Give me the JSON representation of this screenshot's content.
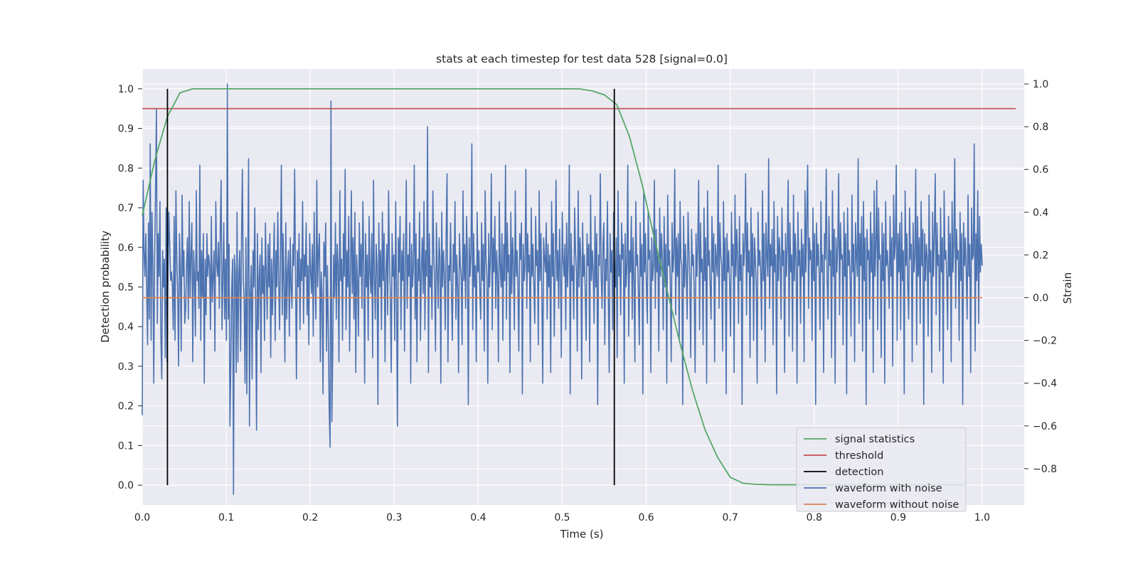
{
  "chart_data": {
    "type": "line",
    "title": "stats at each timestep for test data 528 [signal=0.0]",
    "xlabel": "Time (s)",
    "ylabel_left": "Detection probability",
    "ylabel_right": "Strain",
    "xlim": [
      0.0,
      1.05
    ],
    "ylim_left": [
      -0.05,
      1.05
    ],
    "ylim_right": [
      -0.97,
      1.07
    ],
    "x_ticks": [
      0.0,
      0.1,
      0.2,
      0.3,
      0.4,
      0.5,
      0.6,
      0.7,
      0.8,
      0.9,
      1.0
    ],
    "x_tick_labels": [
      "0.0",
      "0.1",
      "0.2",
      "0.3",
      "0.4",
      "0.5",
      "0.6",
      "0.7",
      "0.8",
      "0.9",
      "1.0"
    ],
    "y_left_ticks": [
      0.0,
      0.1,
      0.2,
      0.3,
      0.4,
      0.5,
      0.6,
      0.7,
      0.8,
      0.9,
      1.0
    ],
    "y_left_tick_labels": [
      "0.0",
      "0.1",
      "0.2",
      "0.3",
      "0.4",
      "0.5",
      "0.6",
      "0.7",
      "0.8",
      "0.9",
      "1.0"
    ],
    "y_right_ticks": [
      -0.8,
      -0.6,
      -0.4,
      -0.2,
      0.0,
      0.2,
      0.4,
      0.6,
      0.8,
      1.0
    ],
    "y_right_tick_labels": [
      "−0.8",
      "−0.6",
      "−0.4",
      "−0.2",
      "0.0",
      "0.2",
      "0.4",
      "0.6",
      "0.8",
      "1.0"
    ],
    "grid": true,
    "legend_position": "lower-right",
    "series": [
      {
        "name": "signal statistics",
        "axis": "left",
        "color": "#55a868",
        "x": [
          0.0,
          0.015,
          0.03,
          0.045,
          0.06,
          0.075,
          0.1,
          0.2,
          0.3,
          0.4,
          0.5,
          0.52,
          0.535,
          0.55,
          0.565,
          0.58,
          0.595,
          0.61,
          0.625,
          0.64,
          0.655,
          0.67,
          0.685,
          0.7,
          0.715,
          0.73,
          0.75,
          0.8,
          0.9,
          0.98
        ],
        "values": [
          0.68,
          0.82,
          0.93,
          0.99,
          1.0,
          1.0,
          1.0,
          1.0,
          1.0,
          1.0,
          1.0,
          1.0,
          0.995,
          0.985,
          0.96,
          0.88,
          0.76,
          0.62,
          0.49,
          0.36,
          0.24,
          0.14,
          0.07,
          0.02,
          0.005,
          0.002,
          0.001,
          0.001,
          0.001,
          0.001
        ]
      },
      {
        "name": "threshold",
        "axis": "left",
        "color": "#c44e52",
        "x": [
          0.0,
          1.04
        ],
        "values": [
          0.95,
          0.95
        ]
      },
      {
        "name": "detection",
        "axis": "left",
        "color": "#000000",
        "vertical_lines_x": [
          0.03,
          0.562
        ],
        "ymin": 0.0,
        "ymax": 1.0
      },
      {
        "name": "waveform with noise",
        "axis": "right",
        "color": "#4c72b0",
        "x_start": 0.0,
        "x_end": 1.0,
        "values": [
          -0.55,
          0.55,
          0.22,
          0.1,
          0.3,
          0.05,
          -0.22,
          0.35,
          -0.1,
          0.72,
          -0.2,
          0.4,
          0.15,
          -0.4,
          0.2,
          0.5,
          0.88,
          -0.12,
          0.3,
          0.1,
          0.45,
          -0.18,
          -0.38,
          0.22,
          0.05,
          0.18,
          -0.28,
          0.42,
          -0.3,
          0.1,
          0.4,
          0.25,
          0.08,
          0.12,
          0.06,
          -0.15,
          0.38,
          -0.2,
          0.5,
          0.18,
          0.02,
          -0.32,
          0.3,
          0.12,
          -0.25,
          0.48,
          0.1,
          0.22,
          -0.12,
          -0.05,
          0.15,
          0.28,
          -0.1,
          0.45,
          0.0,
          0.2,
          0.35,
          -0.3,
          0.22,
          0.1,
          -0.18,
          0.5,
          0.08,
          0.12,
          -0.05,
          0.62,
          -0.2,
          0.22,
          0.0,
          0.3,
          -0.4,
          0.18,
          -0.08,
          0.3,
          0.1,
          0.2,
          0.15,
          -0.15,
          0.38,
          -0.02,
          0.1,
          0.22,
          -0.25,
          0.45,
          0.16,
          0.1,
          0.26,
          -0.05,
          0.3,
          0.55,
          -0.15,
          0.08,
          0.35,
          -0.1,
          0.18,
          -0.2,
          1.0,
          -0.1,
          0.25,
          -0.6,
          -0.3,
          0.05,
          0.18,
          -0.92,
          0.2,
          0.12,
          -0.35,
          0.4,
          -0.3,
          0.1,
          0.22,
          -0.25,
          0.25,
          0.6,
          0.08,
          0.0,
          -0.4,
          0.28,
          -0.45,
          0.1,
          0.65,
          -0.6,
          0.02,
          0.15,
          -0.38,
          0.22,
          0.05,
          0.42,
          -0.05,
          -0.62,
          0.3,
          -0.15,
          0.1,
          0.2,
          -0.35,
          0.28,
          0.02,
          0.15,
          -0.2,
          0.35,
          0.12,
          -0.1,
          0.25,
          0.05,
          0.3,
          -0.28,
          0.18,
          -0.08,
          0.15,
          0.35,
          -0.2,
          0.22,
          0.05,
          0.4,
          0.08,
          -0.15,
          0.2,
          0.62,
          -0.08,
          0.3,
          0.05,
          -0.3,
          0.35,
          -0.1,
          0.12,
          0.22,
          -0.18,
          0.28,
          0.05,
          -0.05,
          0.25,
          0.15,
          0.6,
          0.1,
          -0.38,
          0.22,
          0.05,
          0.3,
          -0.15,
          0.18,
          0.08,
          0.45,
          -0.12,
          0.2,
          0.1,
          0.35,
          -0.08,
          0.15,
          -0.22,
          0.3,
          0.12,
          0.02,
          0.25,
          -0.18,
          0.4,
          0.08,
          -0.1,
          0.55,
          0.05,
          0.22,
          0.3,
          -0.3,
          0.12,
          0.0,
          -0.45,
          0.26,
          0.1,
          0.35,
          -0.25,
          0.15,
          -0.15,
          -0.52,
          -0.7,
          0.92,
          -0.58,
          -0.25,
          0.2,
          0.0,
          0.35,
          -0.1,
          0.25,
          0.15,
          -0.3,
          0.5,
          0.08,
          0.18,
          -0.2,
          0.3,
          0.1,
          0.6,
          -0.15,
          0.22,
          0.05,
          0.38,
          -0.25,
          0.12,
          0.5,
          0.02,
          0.28,
          -0.1,
          0.4,
          -0.35,
          0.2,
          0.08,
          -0.18,
          0.35,
          0.1,
          0.25,
          -0.05,
          0.45,
          0.15,
          -0.4,
          0.3,
          0.05,
          0.2,
          -0.2,
          0.38,
          0.12,
          0.02,
          0.3,
          -0.28,
          0.55,
          0.1,
          -0.1,
          0.25,
          0.15,
          -0.5,
          0.35,
          0.05,
          0.22,
          -0.15,
          0.4,
          0.08,
          0.3,
          -0.3,
          0.12,
          0.25,
          -0.08,
          0.5,
          0.18,
          0.02,
          -0.35,
          0.3,
          0.1,
          0.2,
          -0.2,
          0.45,
          0.05,
          -0.6,
          0.28,
          0.12,
          0.38,
          -0.15,
          0.22,
          0.08,
          0.3,
          -0.25,
          0.15,
          0.55,
          -0.05,
          0.2,
          0.1,
          0.35,
          -0.4,
          0.25,
          0.05,
          0.15,
          0.62,
          -0.1,
          0.3,
          -0.3,
          0.18,
          0.08,
          0.4,
          -0.2,
          0.12,
          0.28,
          0.02,
          0.45,
          -0.15,
          0.22,
          0.1,
          0.8,
          -0.35,
          0.3,
          0.05,
          0.15,
          -0.1,
          0.5,
          0.2,
          0.08,
          -0.25,
          0.35,
          0.12,
          -0.05,
          0.28,
          0.18,
          -0.4,
          0.4,
          0.05,
          0.22,
          0.1,
          -0.15,
          0.3,
          0.58,
          -0.3,
          0.15,
          0.08,
          0.35,
          0.02,
          -0.2,
          0.25,
          0.12,
          0.45,
          -0.1,
          0.2,
          0.05,
          -0.35,
          0.3,
          0.15,
          0.1,
          -0.22,
          0.5,
          0.08,
          0.25,
          -0.05,
          0.38,
          0.18,
          -0.5,
          0.28,
          0.1,
          0.2,
          0.72,
          -0.15,
          0.3,
          0.05,
          0.15,
          -0.3,
          0.4,
          0.12,
          0.22,
          0.02,
          -0.1,
          0.35,
          0.08,
          0.25,
          -0.25,
          0.5,
          0.18,
          0.1,
          -0.4,
          0.3,
          0.05,
          0.2,
          0.58,
          -0.15,
          0.28,
          0.12,
          0.38,
          -0.05,
          0.22,
          0.1,
          -0.3,
          0.45,
          0.15,
          0.05,
          0.3,
          -0.2,
          0.25,
          0.08,
          0.62,
          -0.1,
          0.35,
          0.12,
          0.2,
          -0.35,
          0.4,
          0.02,
          0.28,
          0.15,
          -0.15,
          0.5,
          0.1,
          0.22,
          0.05,
          -0.25,
          0.3,
          0.18,
          0.35,
          -0.45,
          0.25,
          0.08,
          0.15,
          0.6,
          -0.05,
          0.3,
          0.12,
          0.2,
          -0.3,
          0.42,
          0.1,
          0.25,
          0.05,
          -0.12,
          0.38,
          0.15,
          0.22,
          -0.22,
          0.5,
          0.08,
          0.3,
          0.02,
          -0.4,
          0.28,
          0.18,
          0.12,
          0.35,
          -0.1,
          0.25,
          0.05,
          0.2,
          -0.35,
          0.45,
          0.1,
          0.3,
          -0.18,
          0.15,
          0.55,
          0.08,
          0.22,
          -0.05,
          0.32,
          0.12,
          -0.28,
          0.4,
          0.18,
          0.1,
          0.25,
          -0.15,
          0.35,
          0.05,
          0.2,
          0.62,
          -0.45,
          0.3,
          0.08,
          0.15,
          -0.1,
          0.42,
          0.22,
          0.12,
          -0.25,
          0.5,
          0.05,
          0.28,
          0.18,
          -0.38,
          0.35,
          0.1,
          0.2,
          0.02,
          -0.2,
          0.3,
          0.15,
          0.25,
          -0.3,
          0.48,
          0.08,
          0.22,
          0.12,
          -0.12,
          0.38,
          0.05,
          0.3,
          -0.5,
          0.2,
          0.15,
          0.58,
          0.1,
          -0.05,
          0.25,
          0.35,
          -0.22,
          0.18,
          0.08,
          0.45,
          0.02,
          -0.35,
          0.3,
          0.12,
          0.22,
          -0.15,
          0.4,
          0.15,
          0.05,
          0.28,
          -0.28,
          0.5,
          0.1,
          0.2,
          -0.08,
          0.35,
          0.18,
          0.25,
          -0.4,
          0.3,
          0.05,
          0.15,
          0.62,
          -0.18,
          0.22,
          0.12,
          0.38,
          -0.1,
          0.28,
          0.08,
          -0.3,
          0.45,
          0.15,
          0.2,
          0.02,
          -0.22,
          0.35,
          0.1,
          0.25,
          -0.45,
          0.5,
          0.12,
          0.3,
          0.05,
          -0.12,
          0.4,
          0.18,
          0.22,
          -0.35,
          0.28,
          0.08,
          0.15,
          0.55,
          -0.05,
          0.32,
          0.12,
          0.2,
          -0.25,
          0.42,
          0.1,
          0.3,
          0.18,
          -0.15,
          0.38,
          0.05,
          0.25,
          -0.4,
          0.48,
          0.15,
          0.22,
          0.08,
          -0.3,
          0.35,
          0.12,
          0.2,
          0.6,
          -0.08,
          0.28,
          0.1,
          0.3,
          -0.2,
          0.45,
          0.18,
          0.15,
          -0.5,
          0.38,
          0.05,
          0.25,
          0.12,
          -0.1,
          0.4,
          0.22,
          0.08,
          -0.28,
          0.32,
          0.15,
          0.2,
          0.02,
          -0.35,
          0.3,
          0.1,
          0.25,
          0.55,
          -0.15,
          0.35,
          0.12,
          0.18,
          -0.22,
          0.42,
          0.08,
          0.28,
          -0.4,
          0.5,
          0.15,
          0.22,
          0.05,
          -0.1,
          0.38,
          0.12,
          0.3,
          -0.3,
          0.25,
          0.18,
          0.1,
          0.62,
          -0.05,
          0.35,
          0.2,
          0.15,
          -0.25,
          0.45,
          0.08,
          0.28,
          -0.45,
          0.3,
          0.12,
          0.22,
          0.05,
          -0.18,
          0.4,
          0.15,
          0.25,
          -0.35,
          0.48,
          0.1,
          0.32,
          0.18,
          -0.12,
          0.38,
          0.08,
          0.2,
          -0.5,
          0.3,
          0.15,
          0.25,
          0.58,
          -0.08,
          0.35,
          0.12,
          0.22,
          -0.28,
          0.42,
          0.1,
          0.3,
          -0.2,
          0.28,
          0.18,
          0.05,
          -0.4,
          0.4,
          0.15,
          0.22,
          0.12,
          -0.15,
          0.5,
          0.08,
          0.3,
          -0.3,
          0.35,
          0.2,
          0.1,
          0.65,
          -0.05,
          0.25,
          0.15,
          0.32,
          -0.22,
          0.45,
          0.12,
          0.2,
          -0.45,
          0.38,
          0.08,
          0.28,
          0.18,
          -0.1,
          0.42,
          0.15,
          0.22,
          -0.35,
          0.3,
          0.1,
          0.25,
          0.55,
          -0.18,
          0.35,
          0.12,
          0.2,
          -0.25,
          0.48,
          0.08,
          0.3,
          0.18,
          -0.4,
          0.4,
          0.15,
          0.22,
          -0.12,
          0.32,
          0.1,
          0.25,
          -0.3,
          0.5,
          0.12,
          0.38,
          0.62,
          -0.05,
          0.28,
          0.18,
          0.22,
          -0.2,
          0.42,
          0.08,
          0.3,
          -0.5,
          0.35,
          0.15,
          0.25,
          0.1,
          -0.15,
          0.45,
          0.12,
          0.2,
          -0.35,
          0.3,
          0.18,
          0.6,
          0.08,
          -0.1,
          0.38,
          0.15,
          0.22,
          -0.28,
          0.5,
          0.1,
          0.32,
          -0.4,
          0.28,
          0.12,
          0.25,
          0.58,
          -0.08,
          0.35,
          0.18,
          0.2,
          -0.22,
          0.4,
          0.1,
          0.3,
          -0.45,
          0.42,
          0.15,
          0.22,
          0.08,
          -0.18,
          0.48,
          0.12,
          0.25,
          -0.3,
          0.35,
          0.2,
          0.1,
          0.65,
          -0.12,
          0.3,
          0.15,
          0.38,
          -0.25,
          0.45,
          0.08,
          0.28,
          -0.5,
          0.32,
          0.18,
          0.22,
          -0.1,
          0.4,
          0.12,
          0.3,
          -0.35,
          0.5,
          0.1,
          0.25,
          0.55,
          -0.15,
          0.42,
          0.18,
          0.2,
          -0.28,
          0.35,
          0.08,
          0.3,
          -0.4,
          0.45,
          0.15,
          0.22,
          0.12,
          -0.05,
          0.38,
          0.1,
          0.28,
          -0.32,
          0.48,
          0.18,
          0.25,
          0.62,
          -0.2,
          0.3,
          0.12,
          0.35,
          -0.15,
          0.4,
          0.08,
          0.22,
          -0.45,
          0.5,
          0.15,
          0.3,
          0.05,
          -0.1,
          0.42,
          0.18,
          0.25,
          -0.3,
          0.35,
          0.12,
          0.2,
          0.6,
          -0.22,
          0.38,
          0.1,
          0.28,
          -0.12,
          0.45,
          0.15,
          0.32,
          -0.5,
          0.3,
          0.08,
          0.25,
          0.18,
          -0.18,
          0.48,
          0.12,
          0.22,
          -0.35,
          0.4,
          0.1,
          0.3,
          0.58,
          -0.08,
          0.35,
          0.15,
          0.2,
          -0.25,
          0.42,
          0.12,
          0.28,
          -0.4,
          0.5,
          0.18,
          0.22,
          0.08,
          -0.15,
          0.38,
          0.1,
          0.3,
          -0.3,
          0.45,
          0.12,
          0.25,
          0.65,
          -0.05,
          0.32,
          0.18,
          0.22,
          -0.2,
          0.4,
          0.08,
          0.3,
          -0.5,
          0.35,
          0.15,
          0.28,
          0.12,
          -0.1,
          0.48,
          0.1,
          0.25,
          -0.35,
          0.42,
          0.18,
          0.2,
          0.72,
          -0.25,
          0.3,
          0.08,
          0.5,
          -0.12,
          0.38,
          0.12,
          0.25,
          0.15
        ]
      },
      {
        "name": "waveform without noise",
        "axis": "right",
        "color": "#dd8452",
        "x": [
          0.0,
          1.0
        ],
        "values": [
          0.0,
          0.0
        ]
      }
    ]
  }
}
